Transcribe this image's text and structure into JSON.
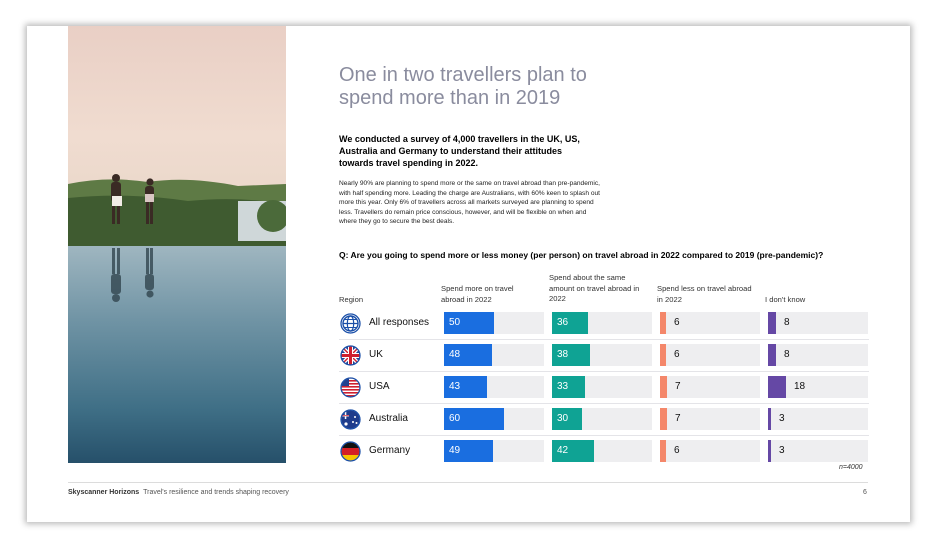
{
  "headline": "One in two travellers plan to spend more than in 2019",
  "intro_bold": "We conducted a survey of 4,000 travellers in the UK, US, Australia and Germany to understand their attitudes towards travel spending in 2022.",
  "intro_body": "Nearly 90% are planning to spend more or the same on travel abroad than pre-pandemic, with half spending more. Leading the charge are Australians, with 60% keen to splash out more this year. Only 6% of travellers across all markets surveyed are planning to spend less. Travellers do remain price conscious, however, and will be flexible on when and where they go to secure the best deals.",
  "question": "Q: Are you going to spend more or less money (per person) on travel abroad in 2022 compared to 2019 (pre-pandemic)?",
  "footnote": "n=4000",
  "footer": {
    "brand": "Skyscanner Horizons",
    "subtitle": "Travel's resilience and trends shaping recovery",
    "page_number": "6"
  },
  "colors": {
    "more": "#1a6ee0",
    "same": "#0fa394",
    "less": "#f4876a",
    "dont_know": "#6548a5",
    "bar_background": "#eeeef0",
    "headline": "#8a8c9e"
  },
  "chart_data": {
    "type": "bar",
    "orientation": "horizontal",
    "title": "Q: Are you going to spend more or less money (per person) on travel abroad in 2022 compared to 2019 (pre-pandemic)?",
    "row_header": "Region",
    "categories": [
      "All responses",
      "UK",
      "USA",
      "Australia",
      "Germany"
    ],
    "icons": [
      "globe-icon",
      "uk-flag-icon",
      "usa-flag-icon",
      "australia-flag-icon",
      "germany-flag-icon"
    ],
    "series": [
      {
        "name": "Spend more on travel abroad in 2022",
        "values": [
          50,
          48,
          43,
          60,
          49
        ],
        "color": "#1a6ee0",
        "label_color": "#ffffff"
      },
      {
        "name": "Spend about the same amount on travel abroad in 2022",
        "values": [
          36,
          38,
          33,
          30,
          42
        ],
        "color": "#0fa394",
        "label_color": "#ffffff"
      },
      {
        "name": "Spend less on travel abroad in 2022",
        "values": [
          6,
          6,
          7,
          7,
          6
        ],
        "color": "#f4876a",
        "label_color": "#111111"
      },
      {
        "name": "I don't know",
        "values": [
          8,
          8,
          18,
          3,
          3
        ],
        "color": "#6548a5",
        "label_color": "#111111"
      }
    ],
    "xlim": [
      0,
      100
    ],
    "unit": "%",
    "note": "n=4000"
  }
}
